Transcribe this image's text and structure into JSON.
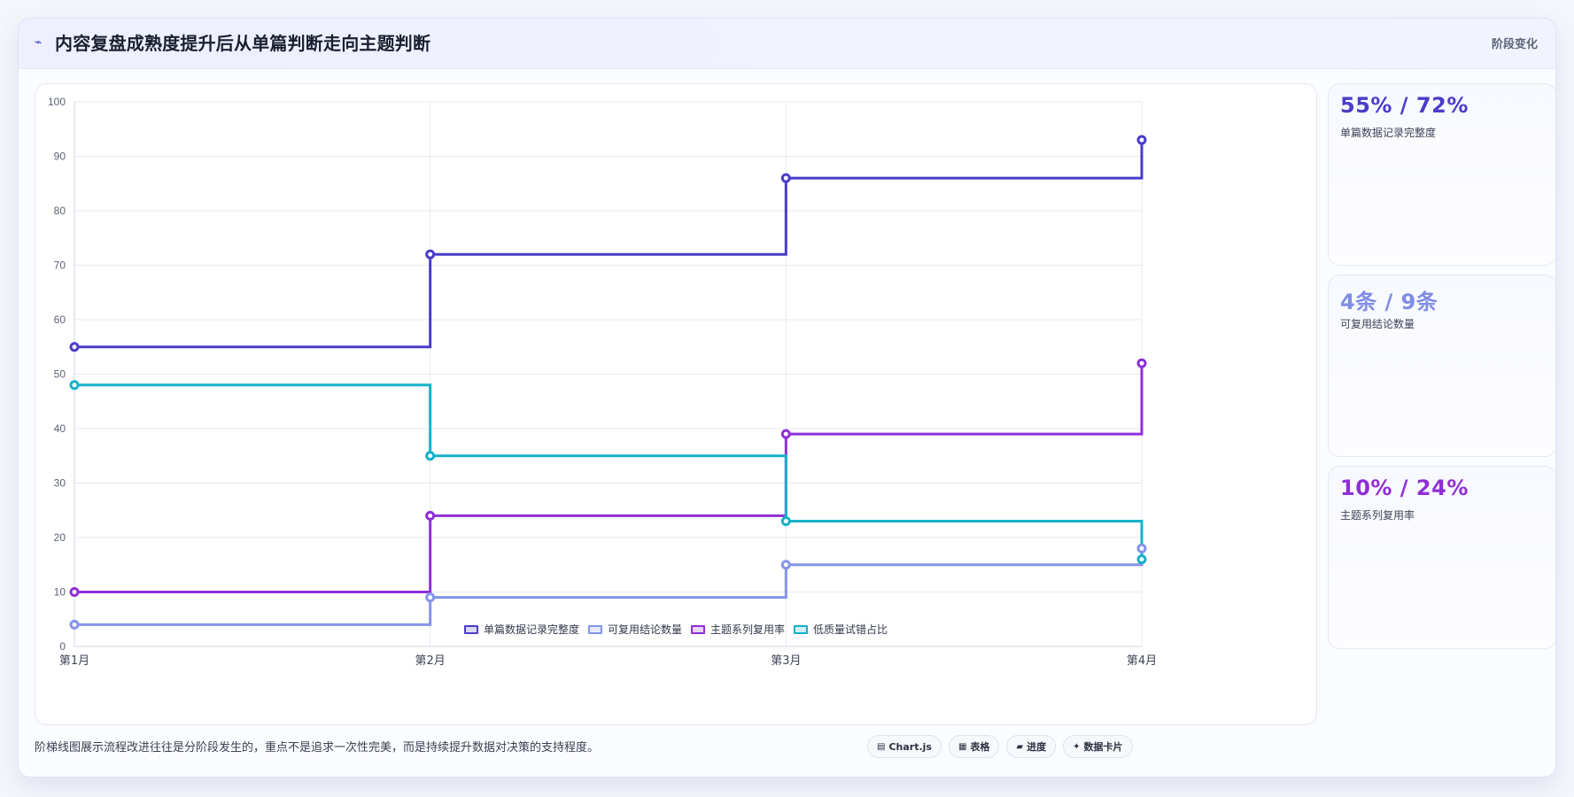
{
  "header": {
    "title": "内容复盘成熟度提升后从单篇判断走向主题判断",
    "title_icon": "⌁",
    "badge": "阶段变化"
  },
  "chart_data": {
    "type": "line",
    "stepped": true,
    "categories": [
      "第1月",
      "第2月",
      "第3月",
      "第4月"
    ],
    "x_tick_labels": [
      "第1月",
      "第2月",
      "第3月",
      "第4月"
    ],
    "y_ticks": [
      0,
      10,
      20,
      30,
      40,
      50,
      60,
      70,
      80,
      90,
      100
    ],
    "ylim": [
      0,
      100
    ],
    "grid": true,
    "legend_position": "bottom",
    "series": [
      {
        "name": "单篇数据记录完整度",
        "values": [
          55,
          72,
          86,
          93
        ],
        "color": "#4b3cc9"
      },
      {
        "name": "可复用结论数量",
        "values": [
          4,
          9,
          15,
          18
        ],
        "color": "#8394ea"
      },
      {
        "name": "主题系列复用率",
        "values": [
          10,
          24,
          39,
          52
        ],
        "color": "#8f2fd6"
      },
      {
        "name": "低质量试错占比",
        "values": [
          48,
          35,
          23,
          16
        ],
        "color": "#17b1c9"
      }
    ]
  },
  "stats": [
    {
      "value": "55% / 72%",
      "label": "单篇数据记录完整度",
      "color": "#4b3cc9"
    },
    {
      "value": "4条 / 9条",
      "label": "可复用结论数量",
      "color": "#7f8de6"
    },
    {
      "value": "10% / 24%",
      "label": "主题系列复用率",
      "color": "#8f2fd6"
    }
  ],
  "footer": {
    "note": "阶梯线图展示流程改进往往是分阶段发生的，重点不是追求一次性完美，而是持续提升数据对决策的支持程度。",
    "tags": [
      {
        "icon": "▤",
        "label": "Chart.js"
      },
      {
        "icon": "▦",
        "label": "表格"
      },
      {
        "icon": "▰",
        "label": "进度"
      },
      {
        "icon": "✦",
        "label": "数据卡片"
      }
    ]
  }
}
